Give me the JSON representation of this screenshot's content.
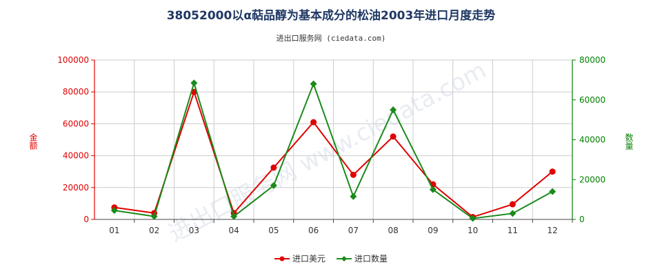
{
  "title": "38052000以α萜品醇为基本成分的松油2003年进口月度走势",
  "subtitle": "进出口服务网 (ciedata.com)",
  "watermark": "进出口服务网 www.ciedata.com",
  "colors": {
    "left_axis": "#e00000",
    "right_axis": "#008000",
    "grid": "#cccccc"
  },
  "chart_data": {
    "type": "line",
    "categories": [
      "01",
      "02",
      "03",
      "04",
      "05",
      "06",
      "07",
      "08",
      "09",
      "10",
      "11",
      "12"
    ],
    "left_axis": {
      "label": "金额",
      "ylim": [
        0,
        100000
      ],
      "ticks": [
        "0",
        "20000",
        "40000",
        "60000",
        "80000",
        "100000"
      ]
    },
    "right_axis": {
      "label": "数量",
      "ylim": [
        0,
        80000
      ],
      "ticks": [
        "0",
        "20000",
        "40000",
        "60000",
        "80000"
      ]
    },
    "series": [
      {
        "name": "进口美元",
        "axis": "left",
        "color": "#e00000",
        "values": [
          7500,
          4000,
          80000,
          4000,
          32500,
          61000,
          28000,
          52000,
          22000,
          1500,
          9500,
          30000
        ]
      },
      {
        "name": "进口数量",
        "axis": "right",
        "color": "#1a8a1a",
        "values": [
          4500,
          1500,
          68500,
          1500,
          17000,
          68000,
          11500,
          55000,
          15000,
          500,
          3000,
          14000
        ]
      }
    ],
    "legend_position": "bottom-center",
    "grid": true
  }
}
